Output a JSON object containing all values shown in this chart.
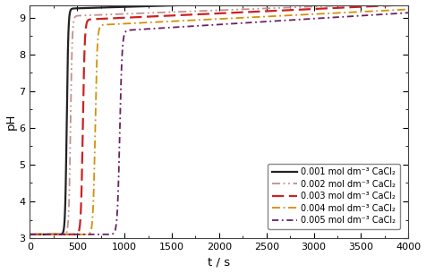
{
  "title": "",
  "xlabel": "t / s",
  "ylabel": "pH",
  "xlim": [
    0,
    4000
  ],
  "ylim": [
    3,
    9.35
  ],
  "yticks": [
    3,
    4,
    5,
    6,
    7,
    8,
    9
  ],
  "xticks": [
    0,
    500,
    1000,
    1500,
    2000,
    2500,
    3000,
    3500,
    4000
  ],
  "series": [
    {
      "label": "0.001 mol dm⁻³ CaCl₂",
      "color": "#222222",
      "linestyle": "solid",
      "linewidth": 1.6,
      "switch_time": 390,
      "plateau": 9.25,
      "steepness": 0.12,
      "slow_rise": 8e-05,
      "base_ph": 3.1
    },
    {
      "label": "0.002 mol dm⁻³ CaCl₂",
      "color": "#c49090",
      "linestyle": "dashdot",
      "linewidth": 1.3,
      "switch_time": 430,
      "plateau": 9.05,
      "steepness": 0.11,
      "slow_rise": 0.0001,
      "base_ph": 3.1
    },
    {
      "label": "0.003 mol dm⁻³ CaCl₂",
      "color": "#cc2222",
      "linestyle": "dashed",
      "linewidth": 1.6,
      "switch_time": 560,
      "plateau": 8.95,
      "steepness": 0.1,
      "slow_rise": 0.00012,
      "base_ph": 3.1
    },
    {
      "label": "0.004 mol dm⁻³ CaCl₂",
      "color": "#d4900a",
      "linestyle": "dashdot",
      "linewidth": 1.3,
      "switch_time": 690,
      "plateau": 8.8,
      "steepness": 0.09,
      "slow_rise": 0.00013,
      "base_ph": 3.1
    },
    {
      "label": "0.005 mol dm⁻³ CaCl₂",
      "color": "#6b2060",
      "linestyle": "dashdot",
      "linewidth": 1.3,
      "switch_time": 950,
      "plateau": 8.65,
      "steepness": 0.08,
      "slow_rise": 0.00016,
      "base_ph": 3.1
    }
  ],
  "background_color": "#ffffff",
  "legend_fontsize": 7.0,
  "axis_fontsize": 9.5
}
